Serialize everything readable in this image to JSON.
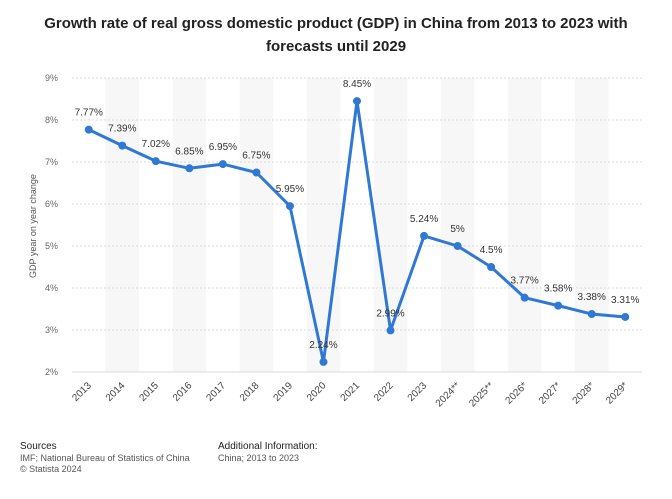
{
  "title": "Growth rate of real gross domestic product (GDP) in China from 2013 to 2023 with forecasts until 2029",
  "chart_data": {
    "type": "line",
    "categories": [
      "2013",
      "2014",
      "2015",
      "2016",
      "2017",
      "2018",
      "2019",
      "2020",
      "2021",
      "2022",
      "2023",
      "2024**",
      "2025**",
      "2026*",
      "2027*",
      "2028*",
      "2029*"
    ],
    "values": [
      7.77,
      7.39,
      7.02,
      6.85,
      6.95,
      6.75,
      5.95,
      2.24,
      8.45,
      2.99,
      5.24,
      5,
      4.5,
      3.77,
      3.58,
      3.38,
      3.31
    ],
    "value_labels": [
      "7.77%",
      "7.39%",
      "7.02%",
      "6.85%",
      "6.95%",
      "6.75%",
      "5.95%",
      "2.24%",
      "8.45%",
      "2.99%",
      "5.24%",
      "5%",
      "4.5%",
      "3.77%",
      "3.58%",
      "3.38%",
      "3.31%"
    ],
    "ylabel": "GDP year on year change",
    "ylim": [
      2,
      9
    ],
    "yticks": [
      2,
      3,
      4,
      5,
      6,
      7,
      8,
      9
    ],
    "ytick_labels": [
      "2%",
      "3%",
      "4%",
      "5%",
      "6%",
      "7%",
      "8%",
      "9%"
    ],
    "line_color": "#2f78d4",
    "band_color": "#f7f7f7",
    "grid": true,
    "legend": "none"
  },
  "footer": {
    "sources_heading": "Sources",
    "sources_lines": [
      "IMF; National Bureau of Statistics of China",
      "© Statista 2024"
    ],
    "info_heading": "Additional Information:",
    "info_lines": [
      "China; 2013 to 2023"
    ]
  }
}
